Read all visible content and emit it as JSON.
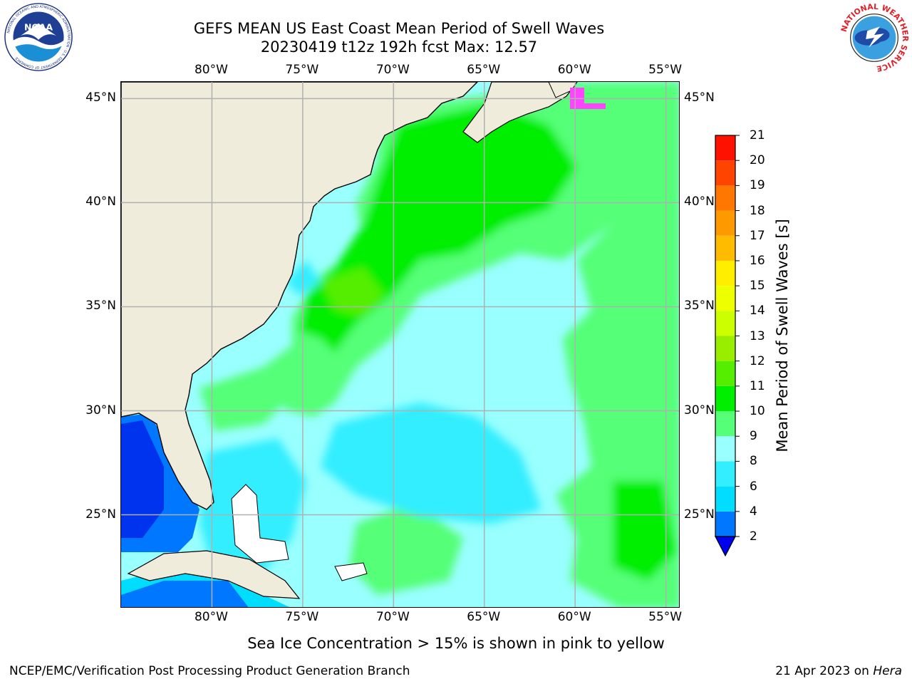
{
  "title_line1": "GEFS MEAN US East Coast Mean Period of Swell Waves",
  "title_line2": "20230419 t12z 192h fcst   Max: 12.57",
  "logos": {
    "left": {
      "name": "noaa-logo",
      "text": "NOAA",
      "ring_text": "NATIONAL OCEANIC AND ATMOSPHERIC ADMINISTRATION · U.S. DEPARTMENT OF COMMERCE"
    },
    "right": {
      "name": "nws-logo",
      "ring_text": "NATIONAL WEATHER SERVICE"
    }
  },
  "map": {
    "lon_labels": [
      "80°W",
      "75°W",
      "70°W",
      "65°W",
      "60°W",
      "55°W"
    ],
    "lon_values": [
      -80,
      -75,
      -70,
      -65,
      -60,
      -55
    ],
    "lat_labels": [
      "45°N",
      "40°N",
      "35°N",
      "30°N",
      "25°N"
    ],
    "lat_values": [
      45,
      40,
      35,
      30,
      25
    ],
    "extent": {
      "lon_min": -85,
      "lon_max": -54.2,
      "lat_min": 20.5,
      "lat_max": 45.8
    },
    "colors": {
      "land": "#efecdc",
      "coast": "#000000",
      "grid": "#b0b0b0"
    }
  },
  "colorbar": {
    "label": "Mean Period of Swell Waves [s]",
    "ticks": [
      "2",
      "4",
      "6",
      "8",
      "9",
      "10",
      "11",
      "12",
      "13",
      "14",
      "15",
      "16",
      "17",
      "18",
      "19",
      "20",
      "21"
    ],
    "colors": [
      "#0033ee",
      "#0077ff",
      "#00ddff",
      "#33eeff",
      "#99ffff",
      "#55ff77",
      "#00ee00",
      "#55ee00",
      "#99ee00",
      "#ccff00",
      "#eeff00",
      "#ffee00",
      "#ffbb00",
      "#ff9900",
      "#ff7700",
      "#ff4400",
      "#ff1100"
    ],
    "extend_color": "#0000ee"
  },
  "footnote": "Sea Ice Concentration > 15% is shown in pink to yellow",
  "footer_left": "NCEP/EMC/Verification Post Processing Product Generation Branch",
  "footer_right_date": "21 Apr 2023 on",
  "footer_right_host": "Hera"
}
